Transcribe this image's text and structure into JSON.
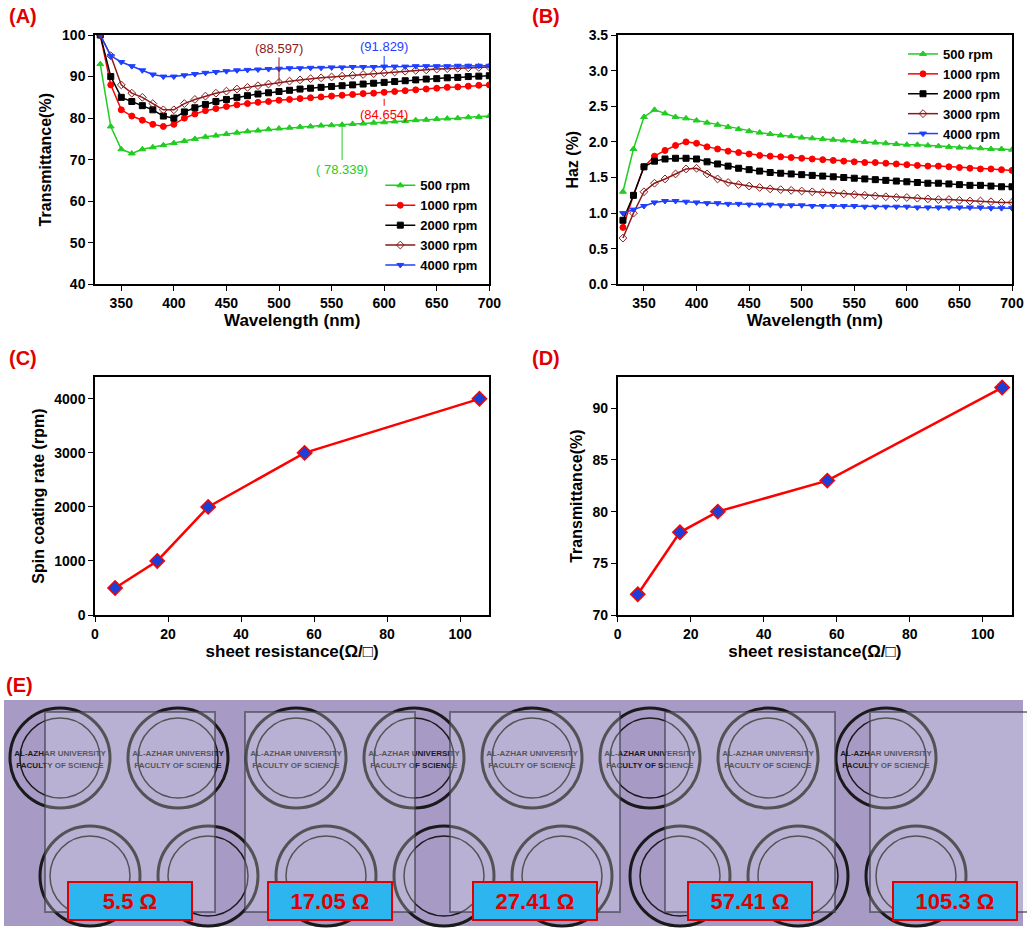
{
  "chart_data": [
    {
      "type": "line",
      "panel_label": "(A)",
      "x_label": "Wavelength (nm)",
      "y_label": "Transmittance(%)",
      "x": [
        330,
        340,
        350,
        360,
        370,
        380,
        390,
        400,
        410,
        420,
        430,
        440,
        450,
        460,
        470,
        480,
        490,
        500,
        510,
        520,
        530,
        540,
        550,
        560,
        570,
        580,
        590,
        600,
        610,
        620,
        630,
        640,
        650,
        660,
        670,
        680,
        690,
        700
      ],
      "series": [
        {
          "name": "500 rpm",
          "color": "#22cc22",
          "marker": "triangle-up",
          "values": [
            93,
            78,
            72.5,
            71.5,
            72.5,
            73,
            73.5,
            74,
            74.5,
            75,
            75.5,
            75.8,
            76.2,
            76.5,
            76.8,
            77,
            77.3,
            77.5,
            77.7,
            77.9,
            78,
            78.2,
            78.3,
            78.4,
            78.6,
            78.7,
            78.9,
            79,
            79.2,
            79.3,
            79.5,
            79.6,
            79.8,
            79.9,
            80,
            80.2,
            80.3,
            80.5
          ]
        },
        {
          "name": "1000 rpm",
          "color": "#ff0000",
          "marker": "circle",
          "values": [
            100,
            88,
            82,
            80.5,
            79.5,
            78.5,
            78,
            78.5,
            80,
            81,
            81.8,
            82.3,
            82.8,
            83.2,
            83.5,
            83.8,
            84,
            84.3,
            84.5,
            84.7,
            84.9,
            85.1,
            85.3,
            85.5,
            85.7,
            85.9,
            86,
            86.2,
            86.4,
            86.6,
            86.8,
            87,
            87.2,
            87.4,
            87.5,
            87.7,
            87.9,
            88
          ]
        },
        {
          "name": "2000 rpm",
          "color": "#000000",
          "marker": "square",
          "values": [
            100,
            90,
            85,
            84,
            83,
            82,
            80.5,
            80,
            81.5,
            82.5,
            83.3,
            84,
            84.5,
            85,
            85.4,
            85.8,
            86.1,
            86.4,
            86.7,
            87,
            87.2,
            87.4,
            87.6,
            87.8,
            88,
            88.2,
            88.4,
            88.6,
            88.8,
            89,
            89.2,
            89.4,
            89.5,
            89.7,
            89.8,
            90,
            90.1,
            90.2
          ]
        },
        {
          "name": "3000 rpm",
          "color": "#8b1a1a",
          "marker": "diamond-open",
          "values": [
            100,
            95,
            88,
            86,
            85,
            83.5,
            82,
            82,
            83.5,
            84.5,
            85.3,
            86,
            86.5,
            87,
            87.4,
            87.8,
            88.2,
            88.6,
            88.9,
            89.2,
            89.5,
            89.7,
            89.9,
            90.1,
            90.3,
            90.5,
            90.7,
            90.9,
            91.1,
            91.3,
            91.5,
            91.6,
            91.8,
            91.9,
            92,
            92.1,
            92.2,
            92.3
          ]
        },
        {
          "name": "4000 rpm",
          "color": "#1f3fff",
          "marker": "triangle-down",
          "values": [
            100,
            95,
            93.5,
            92.5,
            91.5,
            90.5,
            90,
            90,
            90.3,
            90.6,
            90.9,
            91.1,
            91.3,
            91.5,
            91.6,
            91.7,
            91.8,
            91.9,
            92,
            92,
            92.1,
            92.1,
            92.2,
            92.2,
            92.3,
            92.3,
            92.3,
            92.4,
            92.4,
            92.4,
            92.5,
            92.5,
            92.5,
            92.5,
            92.6,
            92.6,
            92.6,
            92.6
          ]
        }
      ],
      "xlim": [
        325,
        700
      ],
      "xticks": [
        350,
        400,
        450,
        500,
        550,
        600,
        650,
        700
      ],
      "ylim": [
        40,
        100
      ],
      "yticks": [
        40,
        50,
        60,
        70,
        80,
        90,
        100
      ],
      "legend": "lower right",
      "annotations": [
        {
          "text": "(88.597)",
          "x": 500,
          "y": 88.597,
          "color": "#8b1a1a"
        },
        {
          "text": "(91.829)",
          "x": 600,
          "y": 91.829,
          "color": "#1f3fff"
        },
        {
          "text": "(84.654)",
          "x": 600,
          "y": 84.654,
          "color": "#ff0000"
        },
        {
          "text": "( 78.339)",
          "x": 560,
          "y": 78.339,
          "color": "#22cc22"
        }
      ]
    },
    {
      "type": "line",
      "panel_label": "(B)",
      "x_label": "Wavelength (nm)",
      "y_label": "Haz (%)",
      "x": [
        330,
        340,
        350,
        360,
        370,
        380,
        390,
        400,
        410,
        420,
        430,
        440,
        450,
        460,
        470,
        480,
        490,
        500,
        510,
        520,
        530,
        540,
        550,
        560,
        570,
        580,
        590,
        600,
        610,
        620,
        630,
        640,
        650,
        660,
        670,
        680,
        690,
        700
      ],
      "series": [
        {
          "name": "500 rpm",
          "color": "#22cc22",
          "marker": "triangle-up",
          "values": [
            1.3,
            1.9,
            2.35,
            2.45,
            2.4,
            2.35,
            2.33,
            2.3,
            2.27,
            2.24,
            2.21,
            2.18,
            2.15,
            2.13,
            2.11,
            2.09,
            2.08,
            2.06,
            2.05,
            2.04,
            2.03,
            2.02,
            2.01,
            2.0,
            1.99,
            1.98,
            1.97,
            1.96,
            1.96,
            1.95,
            1.94,
            1.93,
            1.92,
            1.92,
            1.91,
            1.9,
            1.9,
            1.89
          ]
        },
        {
          "name": "1000 rpm",
          "color": "#ff0000",
          "marker": "circle",
          "values": [
            0.8,
            1.25,
            1.65,
            1.8,
            1.88,
            1.95,
            2.0,
            1.98,
            1.93,
            1.9,
            1.87,
            1.85,
            1.83,
            1.81,
            1.8,
            1.79,
            1.78,
            1.77,
            1.76,
            1.75,
            1.74,
            1.73,
            1.72,
            1.71,
            1.71,
            1.7,
            1.69,
            1.68,
            1.67,
            1.66,
            1.66,
            1.65,
            1.64,
            1.63,
            1.62,
            1.62,
            1.61,
            1.6
          ]
        },
        {
          "name": "2000 rpm",
          "color": "#000000",
          "marker": "square",
          "values": [
            0.9,
            1.25,
            1.65,
            1.73,
            1.76,
            1.77,
            1.77,
            1.76,
            1.72,
            1.69,
            1.66,
            1.63,
            1.61,
            1.59,
            1.57,
            1.56,
            1.55,
            1.54,
            1.53,
            1.52,
            1.51,
            1.5,
            1.49,
            1.48,
            1.47,
            1.46,
            1.45,
            1.44,
            1.43,
            1.42,
            1.42,
            1.41,
            1.4,
            1.39,
            1.39,
            1.38,
            1.37,
            1.37
          ]
        },
        {
          "name": "3000 rpm",
          "color": "#8b1a1a",
          "marker": "diamond-open",
          "values": [
            0.65,
            1.0,
            1.3,
            1.42,
            1.48,
            1.55,
            1.62,
            1.63,
            1.55,
            1.48,
            1.43,
            1.4,
            1.38,
            1.36,
            1.34,
            1.33,
            1.32,
            1.31,
            1.3,
            1.29,
            1.28,
            1.27,
            1.26,
            1.25,
            1.24,
            1.23,
            1.22,
            1.22,
            1.21,
            1.2,
            1.19,
            1.19,
            1.18,
            1.17,
            1.17,
            1.16,
            1.15,
            1.15
          ]
        },
        {
          "name": "4000 rpm",
          "color": "#1f3fff",
          "marker": "triangle-down",
          "values": [
            1.0,
            1.05,
            1.1,
            1.15,
            1.17,
            1.17,
            1.16,
            1.15,
            1.14,
            1.14,
            1.13,
            1.13,
            1.12,
            1.12,
            1.12,
            1.11,
            1.11,
            1.11,
            1.1,
            1.1,
            1.1,
            1.1,
            1.1,
            1.09,
            1.09,
            1.09,
            1.09,
            1.09,
            1.08,
            1.08,
            1.08,
            1.08,
            1.08,
            1.08,
            1.08,
            1.07,
            1.07,
            1.07
          ]
        }
      ],
      "xlim": [
        325,
        700
      ],
      "xticks": [
        350,
        400,
        450,
        500,
        550,
        600,
        650,
        700
      ],
      "ylim": [
        0,
        3.5
      ],
      "yticks": [
        {
          "value": 0,
          "label": "0.0"
        },
        0.5,
        {
          "value": 1,
          "label": "1.0"
        },
        1.5,
        {
          "value": 2,
          "label": "2.0"
        },
        2.5,
        {
          "value": 3,
          "label": "3.0"
        },
        3.5
      ],
      "legend": "upper right"
    },
    {
      "type": "line",
      "panel_label": "(C)",
      "x_label": "sheet resistance(Ω/□)",
      "y_label": "Spin coating rate (rpm)",
      "x": [
        5.5,
        17.05,
        31,
        57.41,
        105.3
      ],
      "values": [
        500,
        1000,
        2000,
        3000,
        4000
      ],
      "color": "#ff0000",
      "marker": "diamond",
      "xlim": [
        0,
        108
      ],
      "xticks": [
        0,
        20,
        40,
        60,
        80,
        100
      ],
      "ylim": [
        0,
        4400
      ],
      "yticks": [
        0,
        1000,
        2000,
        3000,
        4000
      ]
    },
    {
      "type": "line",
      "panel_label": "(D)",
      "x_label": "sheet resistance(Ω/□)",
      "y_label": "Transmittance(%)",
      "x": [
        5.5,
        17.05,
        27.41,
        57.41,
        105.3
      ],
      "values": [
        72,
        78,
        80,
        83,
        92
      ],
      "color": "#ff0000",
      "marker": "diamond",
      "xlim": [
        0,
        108
      ],
      "xticks": [
        0,
        20,
        40,
        60,
        80,
        100
      ],
      "ylim": [
        70,
        93
      ],
      "yticks": [
        70,
        75,
        80,
        85,
        90
      ]
    }
  ],
  "photo": {
    "panel_label": "(E)",
    "logo_texts": [
      "AL-AZHAR UNIVERSITY",
      "FACULTY OF SCIENCE"
    ],
    "labels": [
      "5.5 Ω",
      "17.05 Ω",
      "27.41 Ω",
      "57.41 Ω",
      "105.3 Ω"
    ]
  }
}
